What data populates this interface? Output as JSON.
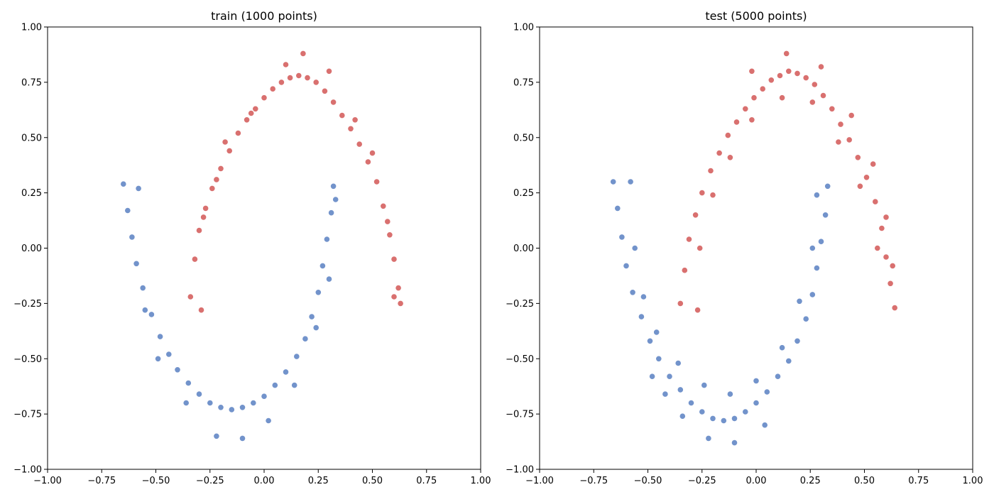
{
  "chart_data": [
    {
      "type": "scatter",
      "title": "train (1000 points)",
      "xlim": [
        -1.0,
        1.0
      ],
      "ylim": [
        -1.0,
        1.0
      ],
      "xticks": [
        "−1.00",
        "−0.75",
        "−0.50",
        "−0.25",
        "0.00",
        "0.25",
        "0.50",
        "0.75",
        "1.00"
      ],
      "yticks": [
        "−1.00",
        "−0.75",
        "−0.50",
        "−0.25",
        "0.00",
        "0.25",
        "0.50",
        "0.75",
        "1.00"
      ],
      "grid": false,
      "series": [
        {
          "color": "#d9706f",
          "points": [
            [
              -0.34,
              -0.22
            ],
            [
              -0.32,
              -0.05
            ],
            [
              -0.3,
              0.08
            ],
            [
              -0.27,
              0.18
            ],
            [
              -0.24,
              0.27
            ],
            [
              -0.2,
              0.36
            ],
            [
              -0.16,
              0.44
            ],
            [
              -0.12,
              0.52
            ],
            [
              -0.08,
              0.58
            ],
            [
              -0.04,
              0.63
            ],
            [
              0.0,
              0.68
            ],
            [
              0.04,
              0.72
            ],
            [
              0.08,
              0.75
            ],
            [
              0.12,
              0.77
            ],
            [
              0.16,
              0.78
            ],
            [
              0.2,
              0.77
            ],
            [
              0.24,
              0.75
            ],
            [
              0.28,
              0.71
            ],
            [
              0.32,
              0.66
            ],
            [
              0.36,
              0.6
            ],
            [
              0.4,
              0.54
            ],
            [
              0.44,
              0.47
            ],
            [
              0.48,
              0.39
            ],
            [
              0.52,
              0.3
            ],
            [
              0.55,
              0.19
            ],
            [
              0.58,
              0.06
            ],
            [
              0.6,
              -0.05
            ],
            [
              0.62,
              -0.18
            ],
            [
              0.63,
              -0.25
            ],
            [
              -0.29,
              -0.28
            ],
            [
              -0.28,
              0.14
            ],
            [
              -0.22,
              0.31
            ],
            [
              -0.18,
              0.48
            ],
            [
              -0.06,
              0.61
            ],
            [
              0.1,
              0.83
            ],
            [
              0.18,
              0.88
            ],
            [
              0.3,
              0.8
            ],
            [
              0.42,
              0.58
            ],
            [
              0.5,
              0.43
            ],
            [
              0.57,
              0.12
            ],
            [
              0.6,
              -0.22
            ]
          ]
        },
        {
          "color": "#7293cb",
          "points": [
            [
              -0.65,
              0.29
            ],
            [
              -0.63,
              0.17
            ],
            [
              -0.61,
              0.05
            ],
            [
              -0.59,
              -0.07
            ],
            [
              -0.56,
              -0.18
            ],
            [
              -0.52,
              -0.3
            ],
            [
              -0.48,
              -0.4
            ],
            [
              -0.44,
              -0.48
            ],
            [
              -0.4,
              -0.55
            ],
            [
              -0.35,
              -0.61
            ],
            [
              -0.3,
              -0.66
            ],
            [
              -0.25,
              -0.7
            ],
            [
              -0.2,
              -0.72
            ],
            [
              -0.15,
              -0.73
            ],
            [
              -0.1,
              -0.72
            ],
            [
              -0.05,
              -0.7
            ],
            [
              0.0,
              -0.67
            ],
            [
              0.05,
              -0.62
            ],
            [
              0.1,
              -0.56
            ],
            [
              0.15,
              -0.49
            ],
            [
              0.19,
              -0.41
            ],
            [
              0.22,
              -0.31
            ],
            [
              0.25,
              -0.2
            ],
            [
              0.27,
              -0.08
            ],
            [
              0.29,
              0.04
            ],
            [
              0.31,
              0.16
            ],
            [
              0.32,
              0.28
            ],
            [
              -0.58,
              0.27
            ],
            [
              -0.55,
              -0.28
            ],
            [
              -0.49,
              -0.5
            ],
            [
              -0.36,
              -0.7
            ],
            [
              -0.22,
              -0.85
            ],
            [
              -0.1,
              -0.86
            ],
            [
              0.02,
              -0.78
            ],
            [
              0.14,
              -0.62
            ],
            [
              0.24,
              -0.36
            ],
            [
              0.3,
              -0.14
            ],
            [
              0.33,
              0.22
            ]
          ]
        }
      ]
    },
    {
      "type": "scatter",
      "title": "test (5000 points)",
      "xlim": [
        -1.0,
        1.0
      ],
      "ylim": [
        -1.0,
        1.0
      ],
      "xticks": [
        "−1.00",
        "−0.75",
        "−0.50",
        "−0.25",
        "0.00",
        "0.25",
        "0.50",
        "0.75",
        "1.00"
      ],
      "yticks": [
        "−1.00",
        "−0.75",
        "−0.50",
        "−0.25",
        "0.00",
        "0.25",
        "0.50",
        "0.75",
        "1.00"
      ],
      "grid": false,
      "series": [
        {
          "color": "#d9706f",
          "points": [
            [
              -0.35,
              -0.25
            ],
            [
              -0.33,
              -0.1
            ],
            [
              -0.31,
              0.04
            ],
            [
              -0.28,
              0.15
            ],
            [
              -0.25,
              0.25
            ],
            [
              -0.21,
              0.35
            ],
            [
              -0.17,
              0.43
            ],
            [
              -0.13,
              0.51
            ],
            [
              -0.09,
              0.57
            ],
            [
              -0.05,
              0.63
            ],
            [
              -0.01,
              0.68
            ],
            [
              0.03,
              0.72
            ],
            [
              0.07,
              0.76
            ],
            [
              0.11,
              0.78
            ],
            [
              0.15,
              0.8
            ],
            [
              0.19,
              0.79
            ],
            [
              0.23,
              0.77
            ],
            [
              0.27,
              0.74
            ],
            [
              0.31,
              0.69
            ],
            [
              0.35,
              0.63
            ],
            [
              0.39,
              0.56
            ],
            [
              0.43,
              0.49
            ],
            [
              0.47,
              0.41
            ],
            [
              0.51,
              0.32
            ],
            [
              0.55,
              0.21
            ],
            [
              0.58,
              0.09
            ],
            [
              0.6,
              -0.04
            ],
            [
              0.62,
              -0.16
            ],
            [
              0.64,
              -0.27
            ],
            [
              -0.27,
              -0.28
            ],
            [
              -0.26,
              0.0
            ],
            [
              -0.2,
              0.24
            ],
            [
              -0.12,
              0.41
            ],
            [
              -0.02,
              0.58
            ],
            [
              0.12,
              0.68
            ],
            [
              0.26,
              0.66
            ],
            [
              0.38,
              0.48
            ],
            [
              0.48,
              0.28
            ],
            [
              0.56,
              0.0
            ],
            [
              -0.02,
              0.8
            ],
            [
              0.14,
              0.88
            ],
            [
              0.3,
              0.82
            ],
            [
              0.44,
              0.6
            ],
            [
              0.54,
              0.38
            ],
            [
              0.6,
              0.14
            ],
            [
              0.63,
              -0.08
            ]
          ]
        },
        {
          "color": "#7293cb",
          "points": [
            [
              -0.66,
              0.3
            ],
            [
              -0.64,
              0.18
            ],
            [
              -0.62,
              0.05
            ],
            [
              -0.6,
              -0.08
            ],
            [
              -0.57,
              -0.2
            ],
            [
              -0.53,
              -0.31
            ],
            [
              -0.49,
              -0.42
            ],
            [
              -0.45,
              -0.5
            ],
            [
              -0.4,
              -0.58
            ],
            [
              -0.35,
              -0.64
            ],
            [
              -0.3,
              -0.7
            ],
            [
              -0.25,
              -0.74
            ],
            [
              -0.2,
              -0.77
            ],
            [
              -0.15,
              -0.78
            ],
            [
              -0.1,
              -0.77
            ],
            [
              -0.05,
              -0.74
            ],
            [
              0.0,
              -0.7
            ],
            [
              0.05,
              -0.65
            ],
            [
              0.1,
              -0.58
            ],
            [
              0.15,
              -0.51
            ],
            [
              0.19,
              -0.42
            ],
            [
              0.23,
              -0.32
            ],
            [
              0.26,
              -0.21
            ],
            [
              0.28,
              -0.09
            ],
            [
              0.3,
              0.03
            ],
            [
              0.32,
              0.15
            ],
            [
              0.33,
              0.28
            ],
            [
              -0.58,
              0.3
            ],
            [
              -0.56,
              0.0
            ],
            [
              -0.52,
              -0.22
            ],
            [
              -0.46,
              -0.38
            ],
            [
              -0.36,
              -0.52
            ],
            [
              -0.24,
              -0.62
            ],
            [
              -0.12,
              -0.66
            ],
            [
              0.0,
              -0.6
            ],
            [
              0.12,
              -0.45
            ],
            [
              0.2,
              -0.24
            ],
            [
              0.26,
              0.0
            ],
            [
              0.28,
              0.24
            ],
            [
              -0.34,
              -0.76
            ],
            [
              -0.22,
              -0.86
            ],
            [
              -0.1,
              -0.88
            ],
            [
              0.04,
              -0.8
            ],
            [
              -0.42,
              -0.66
            ],
            [
              -0.48,
              -0.58
            ]
          ]
        }
      ]
    }
  ]
}
